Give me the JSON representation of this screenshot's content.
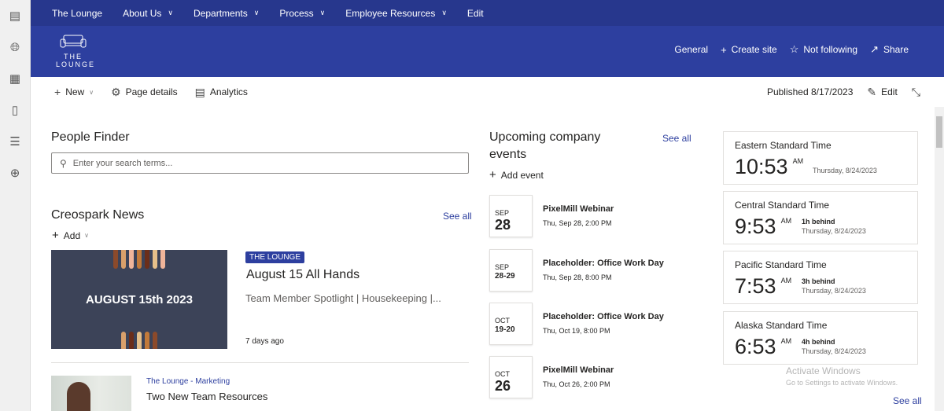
{
  "rail": {
    "icons": [
      "lounge-icon",
      "globe-icon",
      "news-icon",
      "document-icon",
      "list-icon",
      "add-circle-icon"
    ]
  },
  "topnav": {
    "items": [
      {
        "label": "The Lounge",
        "dropdown": false
      },
      {
        "label": "About Us",
        "dropdown": true
      },
      {
        "label": "Departments",
        "dropdown": true
      },
      {
        "label": "Process",
        "dropdown": true
      },
      {
        "label": "Employee Resources",
        "dropdown": true
      },
      {
        "label": "Edit",
        "dropdown": false
      }
    ]
  },
  "banner": {
    "logo_line1": "THE",
    "logo_line2": "LOUNGE",
    "general": "General",
    "create_site": "Create site",
    "not_following": "Not following",
    "share": "Share"
  },
  "cmdbar": {
    "new": "New",
    "page_details": "Page details",
    "analytics": "Analytics",
    "published": "Published 8/17/2023",
    "edit": "Edit"
  },
  "people_finder": {
    "title": "People Finder",
    "placeholder": "Enter your search terms..."
  },
  "news": {
    "title": "Creospark News",
    "see_all": "See all",
    "add": "Add",
    "items": [
      {
        "tag": "THE LOUNGE",
        "image_text": "AUGUST 15th 2023",
        "title": "August 15 All Hands",
        "desc": "Team Member Spotlight | Housekeeping |...",
        "age": "7 days ago"
      },
      {
        "category": "The Lounge - Marketing",
        "title": "Two New Team Resources"
      }
    ]
  },
  "events": {
    "title": "Upcoming company events",
    "see_all": "See all",
    "add": "Add event",
    "items": [
      {
        "month": "SEP",
        "day": "28",
        "title": "PixelMill Webinar",
        "when": "Thu, Sep 28, 2:00 PM"
      },
      {
        "month": "SEP",
        "day": "28-29",
        "title": "Placeholder: Office Work Day",
        "when": "Thu, Sep 28, 8:00 PM"
      },
      {
        "month": "OCT",
        "day": "19-20",
        "title": "Placeholder: Office Work Day",
        "when": "Thu, Oct 19, 8:00 PM"
      },
      {
        "month": "OCT",
        "day": "26",
        "title": "PixelMill Webinar",
        "when": "Thu, Oct 26, 2:00 PM"
      }
    ]
  },
  "clocks": {
    "see_all": "See all",
    "items": [
      {
        "zone": "Eastern Standard Time",
        "time": "10:53",
        "ampm": "AM",
        "behind": "",
        "date": "Thursday, 8/24/2023"
      },
      {
        "zone": "Central Standard Time",
        "time": "9:53",
        "ampm": "AM",
        "behind": "1h behind",
        "date": "Thursday, 8/24/2023"
      },
      {
        "zone": "Pacific Standard Time",
        "time": "7:53",
        "ampm": "AM",
        "behind": "3h behind",
        "date": "Thursday, 8/24/2023"
      },
      {
        "zone": "Alaska Standard Time",
        "time": "6:53",
        "ampm": "AM",
        "behind": "4h behind",
        "date": "Thursday, 8/24/2023"
      }
    ]
  },
  "watermark": {
    "title": "Activate Windows",
    "sub": "Go to Settings to activate Windows."
  },
  "colors": {
    "nav": "#27378d",
    "banner": "#2d3f9f",
    "link": "#2d3f9f"
  }
}
